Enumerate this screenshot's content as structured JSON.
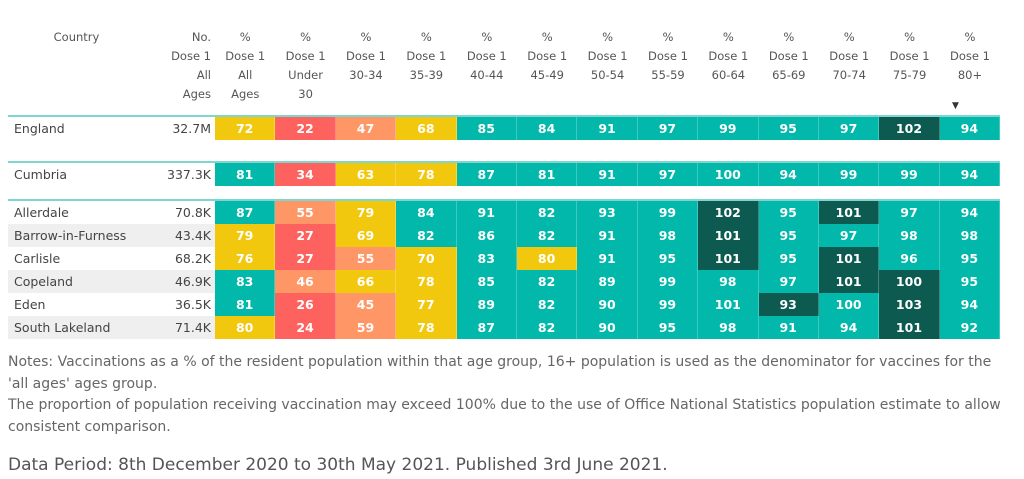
{
  "colors": {
    "r": "#fd625e",
    "o": "#fe9666",
    "y": "#f2c80f",
    "t": "#01b8aa",
    "d": "#0c5a50"
  },
  "headers": [
    {
      "lines": [
        "Country"
      ]
    },
    {
      "lines": [
        "No.",
        "Dose 1",
        "All",
        "Ages"
      ]
    },
    {
      "lines": [
        "%",
        "Dose 1",
        "All",
        "Ages"
      ]
    },
    {
      "lines": [
        "%",
        "Dose 1",
        "Under",
        "30"
      ]
    },
    {
      "lines": [
        "%",
        "Dose 1",
        "30-34"
      ]
    },
    {
      "lines": [
        "%",
        "Dose 1",
        "35-39"
      ]
    },
    {
      "lines": [
        "%",
        "Dose 1",
        "40-44"
      ]
    },
    {
      "lines": [
        "%",
        "Dose 1",
        "45-49"
      ]
    },
    {
      "lines": [
        "%",
        "Dose 1",
        "50-54"
      ]
    },
    {
      "lines": [
        "%",
        "Dose 1",
        "55-59"
      ]
    },
    {
      "lines": [
        "%",
        "Dose 1",
        "60-64"
      ]
    },
    {
      "lines": [
        "%",
        "Dose 1",
        "65-69"
      ]
    },
    {
      "lines": [
        "%",
        "Dose 1",
        "70-74"
      ]
    },
    {
      "lines": [
        "%",
        "Dose 1",
        "75-79"
      ]
    },
    {
      "lines": [
        "%",
        "Dose 1",
        "80+"
      ]
    }
  ],
  "sort_indicator": "▼",
  "tables": [
    {
      "rows": [
        {
          "name": "England",
          "total": "32.7M",
          "values": [
            72,
            22,
            47,
            68,
            85,
            84,
            91,
            97,
            99,
            95,
            97,
            102,
            94
          ],
          "levels": "yroytttttttdt"
        }
      ]
    },
    {
      "rows": [
        {
          "name": "Cumbria",
          "total": "337.3K",
          "values": [
            81,
            34,
            63,
            78,
            87,
            81,
            91,
            97,
            100,
            94,
            99,
            99,
            94
          ],
          "levels": "tryyttttttttt"
        }
      ]
    },
    {
      "rows": [
        {
          "name": "Allerdale",
          "total": "70.8K",
          "values": [
            87,
            55,
            79,
            84,
            91,
            82,
            93,
            99,
            102,
            95,
            101,
            97,
            94
          ],
          "levels": "toytttttdtdtt"
        },
        {
          "name": "Barrow-in-Furness",
          "total": "43.4K",
          "values": [
            79,
            27,
            69,
            82,
            86,
            82,
            91,
            98,
            101,
            95,
            97,
            98,
            98
          ],
          "levels": "yrytttttdtttt"
        },
        {
          "name": "Carlisle",
          "total": "68.2K",
          "values": [
            76,
            27,
            55,
            70,
            83,
            80,
            91,
            95,
            101,
            95,
            101,
            96,
            95
          ],
          "levels": "yroytyttdtdtt"
        },
        {
          "name": "Copeland",
          "total": "46.9K",
          "values": [
            83,
            46,
            66,
            78,
            85,
            82,
            89,
            99,
            98,
            97,
            101,
            100,
            95
          ],
          "levels": "toyyttttttddt"
        },
        {
          "name": "Eden",
          "total": "36.5K",
          "values": [
            81,
            26,
            45,
            77,
            89,
            82,
            90,
            99,
            101,
            93,
            100,
            103,
            94
          ],
          "levels": "troytttttdtdt"
        },
        {
          "name": "South Lakeland",
          "total": "71.4K",
          "values": [
            80,
            24,
            59,
            78,
            87,
            82,
            90,
            95,
            98,
            91,
            94,
            101,
            92
          ],
          "levels": "yroytttttttdt"
        }
      ]
    }
  ],
  "notes": [
    "Notes: Vaccinations as a % of the resident population within that age group, 16+ population is used as the denominator for vaccines for the 'all ages' ages group.",
    "The proportion of population receiving vaccination may exceed 100% due to the use of Office National Statistics population estimate to allow consistent comparison."
  ],
  "data_period": "Data Period: 8th December 2020 to 30th May 2021. Published 3rd June 2021."
}
